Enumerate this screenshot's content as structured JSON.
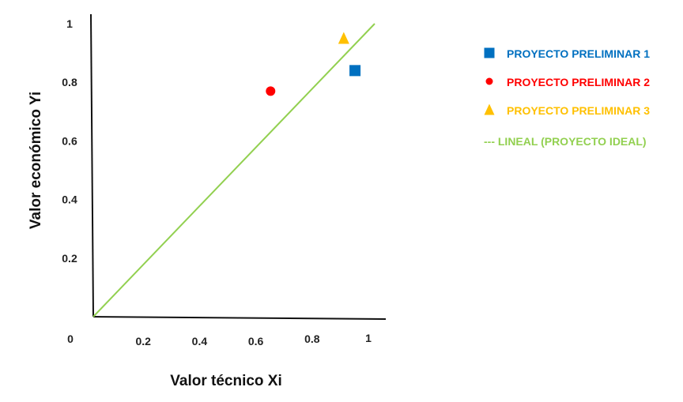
{
  "chart_data": {
    "type": "scatter",
    "title": "",
    "xlabel": "Valor técnico Xi",
    "ylabel": "Valor económico Yi",
    "origin_label": "0",
    "xlim": [
      0,
      1
    ],
    "ylim": [
      0,
      1
    ],
    "x_ticks": [
      {
        "value": 0.2,
        "label": "0.2"
      },
      {
        "value": 0.4,
        "label": "0.4"
      },
      {
        "value": 0.6,
        "label": "0.6"
      },
      {
        "value": 0.8,
        "label": "0.8"
      },
      {
        "value": 1.0,
        "label": "1"
      }
    ],
    "y_ticks": [
      {
        "value": 0.2,
        "label": "0.2"
      },
      {
        "value": 0.4,
        "label": "0.4"
      },
      {
        "value": 0.6,
        "label": "0.6"
      },
      {
        "value": 0.8,
        "label": "0.8"
      },
      {
        "value": 1.0,
        "label": "1"
      }
    ],
    "grid": false,
    "legend_position": "right",
    "series": [
      {
        "name": "PROYECTO PRELIMINAR 1",
        "marker": "square",
        "color": "#0070c0",
        "x": [
          0.93
        ],
        "y": [
          0.84
        ]
      },
      {
        "name": "PROYECTO PRELIMINAR 2",
        "marker": "circle",
        "color": "#ff0000",
        "x": [
          0.63
        ],
        "y": [
          0.77
        ]
      },
      {
        "name": "PROYECTO PRELIMINAR 3",
        "marker": "triangle",
        "color": "#ffc000",
        "x": [
          0.89
        ],
        "y": [
          0.95
        ]
      }
    ],
    "reference_line": {
      "name": "--- LINEAL (PROYECTO IDEAL)",
      "color": "#92d050",
      "x": [
        0,
        1
      ],
      "y": [
        0,
        1
      ]
    }
  }
}
